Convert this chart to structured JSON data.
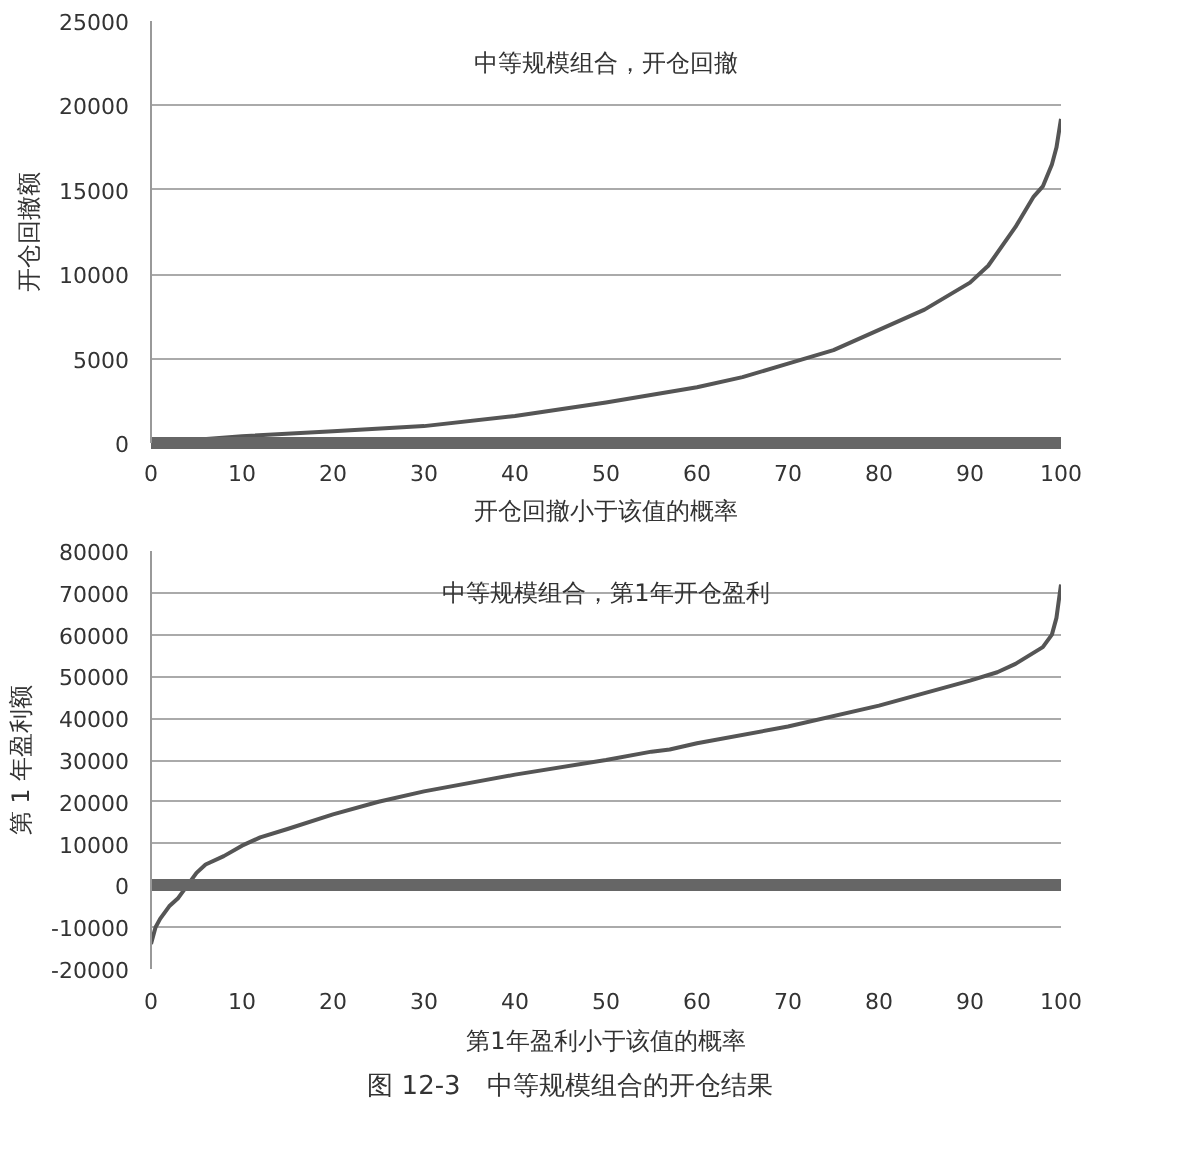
{
  "chart_data": [
    {
      "type": "line",
      "title": "中等规模组合，开仓回撤",
      "xlabel": "开仓回撤小于该值的概率",
      "ylabel": "开仓回撤额",
      "x": [
        0,
        5,
        10,
        20,
        30,
        40,
        50,
        60,
        65,
        70,
        75,
        80,
        85,
        90,
        92,
        95,
        97,
        98,
        99,
        99.5,
        100
      ],
      "series": [
        {
          "color": "#555555",
          "values": [
            0,
            200,
            400,
            700,
            1000,
            1600,
            2400,
            3300,
            3900,
            4700,
            5500,
            6700,
            7900,
            9500,
            10500,
            12800,
            14600,
            15200,
            16500,
            17500,
            19200
          ]
        }
      ],
      "xlim": [
        0,
        100
      ],
      "xticks": [
        0,
        10,
        20,
        30,
        40,
        50,
        60,
        70,
        80,
        90,
        100
      ],
      "ylim": [
        0,
        25000
      ],
      "yticks": [
        0,
        5000,
        10000,
        15000,
        20000,
        25000
      ],
      "grid": "y"
    },
    {
      "type": "line",
      "title": "中等规模组合，第1年开仓盈利",
      "xlabel": "第1年盈利小于该值的概率",
      "ylabel": "第 1 年盈利额",
      "x": [
        0,
        0.5,
        1,
        2,
        3,
        4,
        5,
        6,
        8,
        10,
        12,
        15,
        20,
        25,
        30,
        40,
        50,
        55,
        57,
        60,
        70,
        80,
        90,
        93,
        95,
        98,
        99,
        99.5,
        100
      ],
      "series": [
        {
          "color": "#555555",
          "values": [
            -14000,
            -10000,
            -8000,
            -5000,
            -3000,
            0,
            3000,
            5000,
            7000,
            9500,
            11500,
            13500,
            17000,
            20000,
            22500,
            26500,
            30000,
            32000,
            32500,
            34000,
            38000,
            43000,
            49000,
            51000,
            53000,
            57000,
            60000,
            64000,
            72000
          ]
        }
      ],
      "xlim": [
        0,
        100
      ],
      "xticks": [
        0,
        10,
        20,
        30,
        40,
        50,
        60,
        70,
        80,
        90,
        100
      ],
      "ylim": [
        -20000,
        80000
      ],
      "yticks": [
        -20000,
        -10000,
        0,
        10000,
        20000,
        30000,
        40000,
        50000,
        60000,
        70000,
        80000
      ],
      "grid": "y",
      "annotations": [
        "图 12-3　中等规模组合的开仓结果"
      ]
    }
  ]
}
